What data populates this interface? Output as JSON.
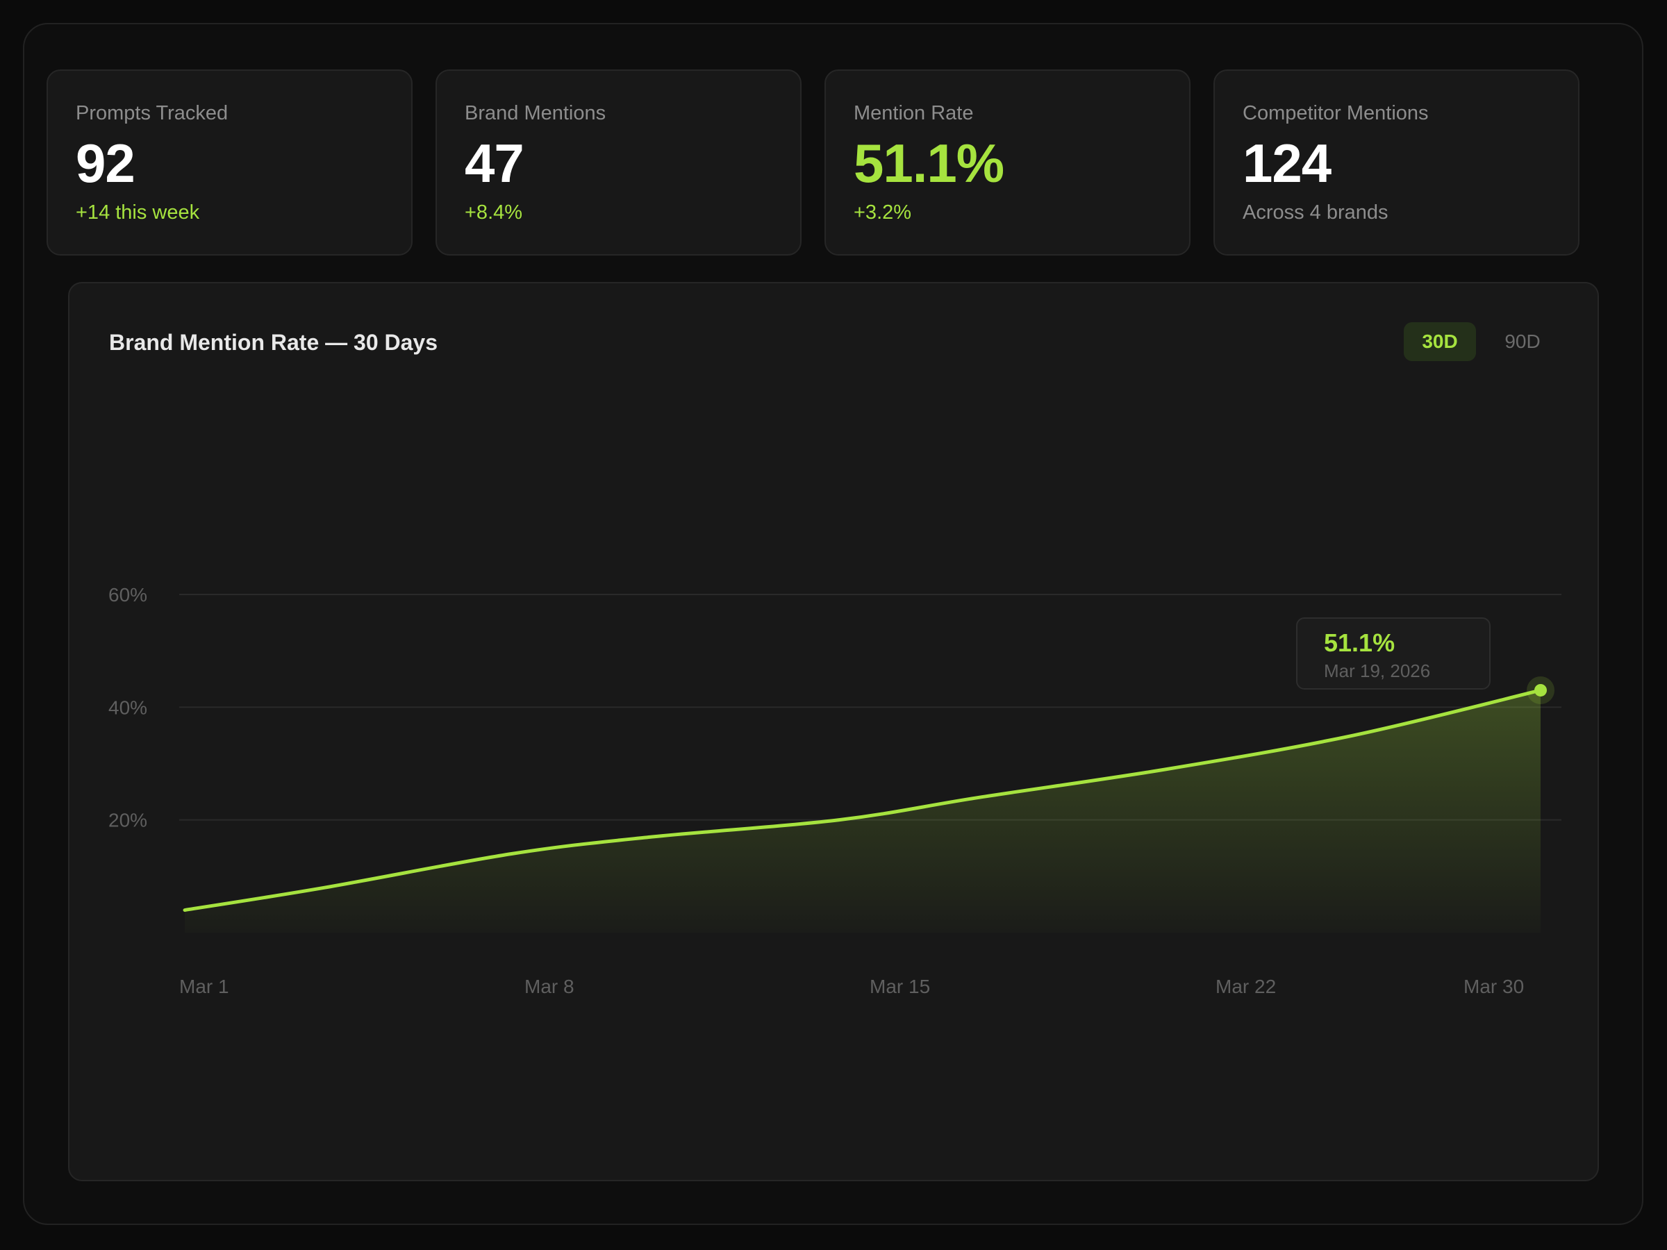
{
  "stats": [
    {
      "label": "Prompts Tracked",
      "value": "92",
      "sub": "+14 this week"
    },
    {
      "label": "Brand Mentions",
      "value": "47",
      "sub": "+8.4%"
    },
    {
      "label": "Mention Rate",
      "value": "51.1%",
      "sub": "+3.2%"
    },
    {
      "label": "Competitor Mentions",
      "value": "124",
      "sub": "Across 4 brands"
    }
  ],
  "colors": {
    "accent": "#a6e33f",
    "background": "#0b0b0b",
    "card": "#181818"
  },
  "chart": {
    "title": "Brand Mention Rate — 30 Days",
    "ranges": [
      {
        "label": "30D",
        "active": true
      },
      {
        "label": "90D",
        "active": false
      }
    ],
    "tooltip": {
      "value": "51.1%",
      "date": "Mar 19, 2026"
    }
  },
  "chart_data": {
    "type": "area",
    "title": "Brand Mention Rate — 30 Days",
    "xlabel": "",
    "ylabel": "",
    "x_ticks": [
      "Mar 1",
      "Mar 8",
      "Mar 15",
      "Mar 22",
      "Mar 30"
    ],
    "y_ticks": [
      "20%",
      "40%",
      "60%"
    ],
    "ylim": [
      0,
      60
    ],
    "grid": true,
    "legend": "none",
    "series": [
      {
        "x": [
          "Mar 1",
          "Mar 4",
          "Mar 8",
          "Mar 11",
          "Mar 15",
          "Mar 18",
          "Mar 22",
          "Mar 26",
          "Mar 30"
        ],
        "values": [
          4,
          8,
          14,
          17,
          20,
          24,
          29,
          35,
          43
        ]
      }
    ]
  }
}
